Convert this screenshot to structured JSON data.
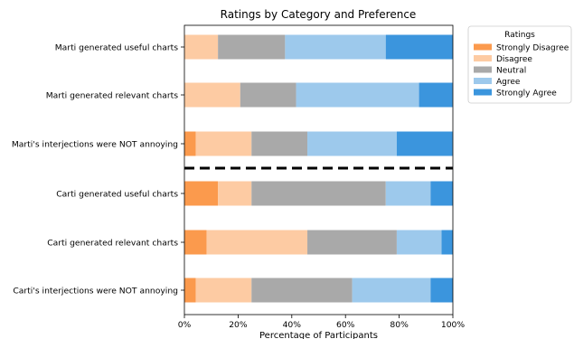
{
  "chart_data": {
    "type": "bar",
    "orientation": "horizontal",
    "stacked": true,
    "title": "Ratings by Category and Preference",
    "xlabel": "Percentage of Participants",
    "ylabel": "",
    "xlim": [
      0,
      100
    ],
    "x_ticks": [
      "0%",
      "20%",
      "40%",
      "60%",
      "80%",
      "100%"
    ],
    "grid": false,
    "legend": {
      "title": "Ratings",
      "placement": "outside top-right"
    },
    "separator": "dashed line between Marti and Carti groups",
    "categories": [
      "Marti generated useful charts",
      "Marti generated relevant charts",
      "Marti's interjections were NOT annoying",
      "Carti generated useful charts",
      "Carti generated relevant charts",
      "Carti's interjections were NOT annoying"
    ],
    "series": [
      {
        "name": "Strongly Disagree",
        "color": "#fb9a4d",
        "values": [
          0,
          0,
          4.2,
          12.5,
          8.3,
          4.2
        ]
      },
      {
        "name": "Disagree",
        "color": "#fdcba3",
        "values": [
          12.5,
          20.8,
          20.8,
          12.5,
          37.5,
          20.8
        ]
      },
      {
        "name": "Neutral",
        "color": "#a9a9a9",
        "values": [
          25.0,
          20.8,
          20.8,
          50.0,
          33.3,
          37.5
        ]
      },
      {
        "name": "Agree",
        "color": "#9dc9ec",
        "values": [
          37.5,
          45.8,
          33.3,
          16.7,
          16.7,
          29.2
        ]
      },
      {
        "name": "Strongly Agree",
        "color": "#3b95dd",
        "values": [
          25.0,
          12.5,
          20.8,
          8.3,
          4.2,
          8.3
        ]
      }
    ]
  }
}
